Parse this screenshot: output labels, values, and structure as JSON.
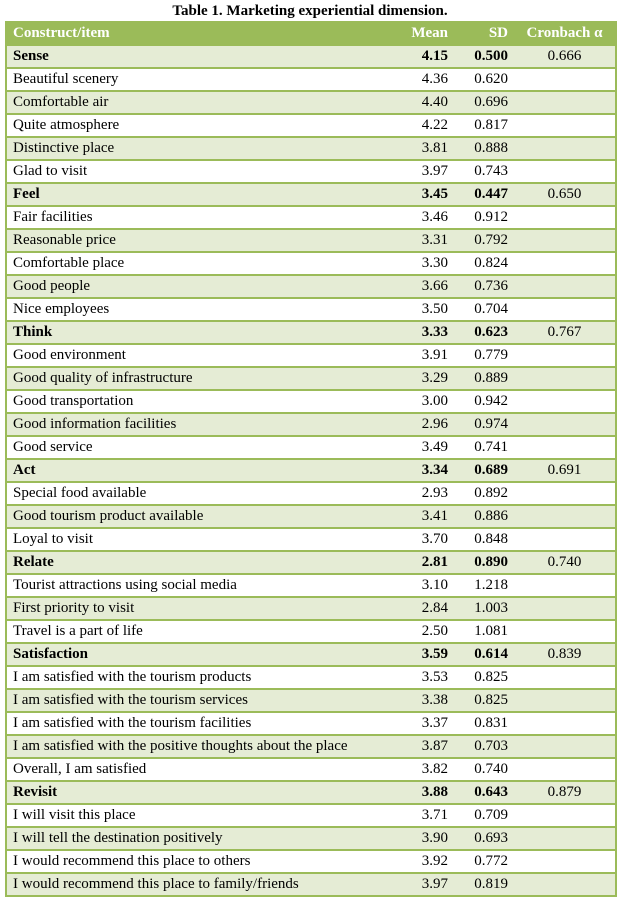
{
  "title": "Table 1. Marketing experiential dimension.",
  "headers": [
    "Construct/item",
    "Mean",
    "SD",
    "Cronbach α"
  ],
  "colors": {
    "header": "#9bbb59",
    "stripe": "#e5ecd5"
  },
  "rows": [
    {
      "item": "Sense",
      "mean": "4.15",
      "sd": "0.500",
      "alpha": "0.666",
      "construct": true
    },
    {
      "item": "Beautiful scenery",
      "mean": "4.36",
      "sd": "0.620",
      "alpha": ""
    },
    {
      "item": "Comfortable air",
      "mean": "4.40",
      "sd": "0.696",
      "alpha": ""
    },
    {
      "item": "Quite atmosphere",
      "mean": "4.22",
      "sd": "0.817",
      "alpha": ""
    },
    {
      "item": "Distinctive place",
      "mean": "3.81",
      "sd": "0.888",
      "alpha": ""
    },
    {
      "item": "Glad to visit",
      "mean": "3.97",
      "sd": "0.743",
      "alpha": ""
    },
    {
      "item": "Feel",
      "mean": "3.45",
      "sd": "0.447",
      "alpha": "0.650",
      "construct": true
    },
    {
      "item": "Fair facilities",
      "mean": "3.46",
      "sd": "0.912",
      "alpha": ""
    },
    {
      "item": "Reasonable price",
      "mean": "3.31",
      "sd": "0.792",
      "alpha": ""
    },
    {
      "item": "Comfortable place",
      "mean": "3.30",
      "sd": "0.824",
      "alpha": ""
    },
    {
      "item": "Good people",
      "mean": "3.66",
      "sd": "0.736",
      "alpha": ""
    },
    {
      "item": "Nice employees",
      "mean": "3.50",
      "sd": "0.704",
      "alpha": ""
    },
    {
      "item": "Think",
      "mean": "3.33",
      "sd": "0.623",
      "alpha": "0.767",
      "construct": true
    },
    {
      "item": "Good environment",
      "mean": "3.91",
      "sd": "0.779",
      "alpha": ""
    },
    {
      "item": "Good quality of infrastructure",
      "mean": "3.29",
      "sd": "0.889",
      "alpha": ""
    },
    {
      "item": "Good transportation",
      "mean": "3.00",
      "sd": "0.942",
      "alpha": ""
    },
    {
      "item": "Good information facilities",
      "mean": "2.96",
      "sd": "0.974",
      "alpha": ""
    },
    {
      "item": "Good service",
      "mean": "3.49",
      "sd": "0.741",
      "alpha": ""
    },
    {
      "item": "Act",
      "mean": "3.34",
      "sd": "0.689",
      "alpha": "0.691",
      "construct": true
    },
    {
      "item": "Special food available",
      "mean": "2.93",
      "sd": "0.892",
      "alpha": ""
    },
    {
      "item": "Good tourism product available",
      "mean": "3.41",
      "sd": "0.886",
      "alpha": ""
    },
    {
      "item": "Loyal to visit",
      "mean": "3.70",
      "sd": "0.848",
      "alpha": ""
    },
    {
      "item": "Relate",
      "mean": "2.81",
      "sd": "0.890",
      "alpha": "0.740",
      "construct": true
    },
    {
      "item": "Tourist attractions using social media",
      "mean": "3.10",
      "sd": "1.218",
      "alpha": ""
    },
    {
      "item": "First priority to visit",
      "mean": "2.84",
      "sd": "1.003",
      "alpha": ""
    },
    {
      "item": "Travel is a part of life",
      "mean": "2.50",
      "sd": "1.081",
      "alpha": ""
    },
    {
      "item": "Satisfaction",
      "mean": "3.59",
      "sd": "0.614",
      "alpha": "0.839",
      "construct": true
    },
    {
      "item": "I am satisfied with the tourism products",
      "mean": "3.53",
      "sd": "0.825",
      "alpha": ""
    },
    {
      "item": "I am satisfied with the tourism services",
      "mean": "3.38",
      "sd": "0.825",
      "alpha": ""
    },
    {
      "item": "I am satisfied with the tourism facilities",
      "mean": "3.37",
      "sd": "0.831",
      "alpha": ""
    },
    {
      "item": "I am satisfied with the positive thoughts about the place",
      "mean": "3.87",
      "sd": "0.703",
      "alpha": ""
    },
    {
      "item": "Overall, I am satisfied",
      "mean": "3.82",
      "sd": "0.740",
      "alpha": ""
    },
    {
      "item": "Revisit",
      "mean": "3.88",
      "sd": "0.643",
      "alpha": "0.879",
      "construct": true
    },
    {
      "item": "I will visit this place",
      "mean": "3.71",
      "sd": "0.709",
      "alpha": ""
    },
    {
      "item": "I will tell the destination positively",
      "mean": "3.90",
      "sd": "0.693",
      "alpha": ""
    },
    {
      "item": "I would recommend this place to others",
      "mean": "3.92",
      "sd": "0.772",
      "alpha": ""
    },
    {
      "item": "I would recommend this place to family/friends",
      "mean": "3.97",
      "sd": "0.819",
      "alpha": ""
    }
  ]
}
